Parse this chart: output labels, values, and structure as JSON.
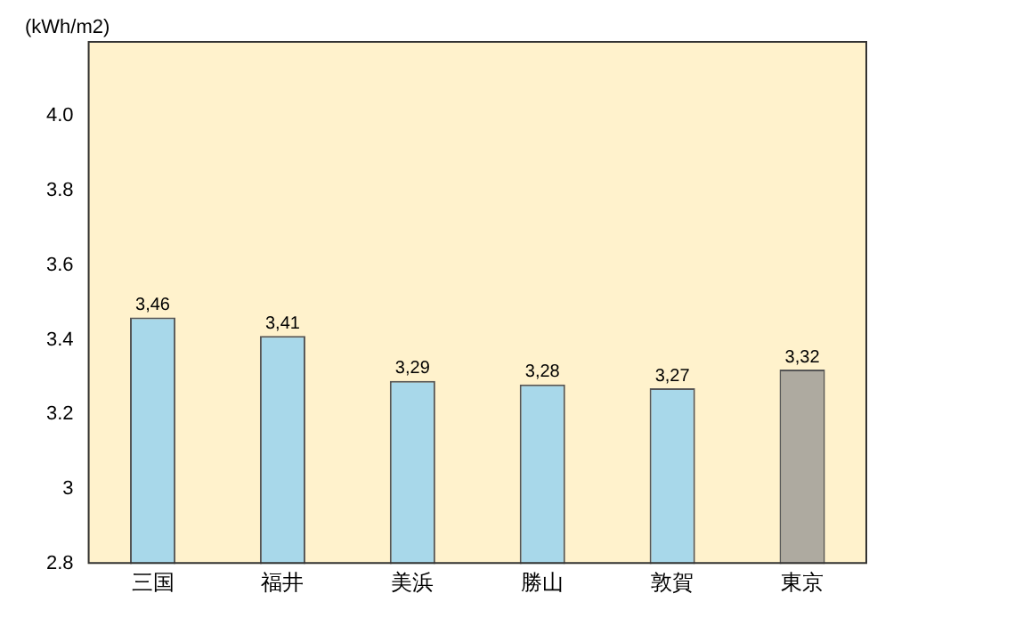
{
  "chart_data": {
    "type": "bar",
    "ylabel": "(kWh/m2)",
    "categories": [
      "三国",
      "福井",
      "美浜",
      "勝山",
      "敦賀",
      "東京"
    ],
    "values": [
      3.46,
      3.41,
      3.29,
      3.28,
      3.27,
      3.32
    ],
    "colors": [
      "#a8d8ea",
      "#a8d8ea",
      "#a8d8ea",
      "#a8d8ea",
      "#a8d8ea",
      "#aeaaa0"
    ],
    "value_labels": [
      "3,46",
      "3,41",
      "3,29",
      "3,28",
      "3,27",
      "3,32"
    ],
    "ylim": [
      2.8,
      4.2
    ],
    "yticks": [
      2.8,
      3,
      3.2,
      3.4,
      3.6,
      3.8,
      {
        "value": 4,
        "label": "4.0"
      }
    ],
    "grid": false,
    "legend": false
  }
}
